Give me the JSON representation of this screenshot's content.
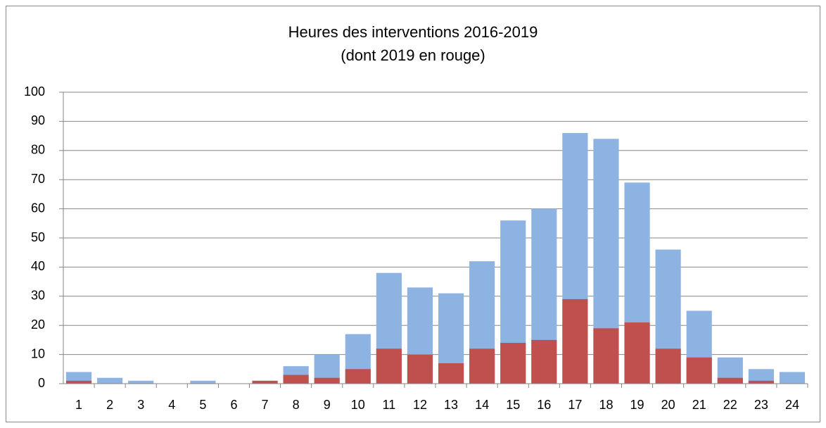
{
  "chart_data": {
    "type": "bar",
    "overlap": true,
    "title": "Heures des interventions 2016-2019",
    "subtitle": "(dont 2019 en rouge)",
    "categories": [
      "1",
      "2",
      "3",
      "4",
      "5",
      "6",
      "7",
      "8",
      "9",
      "10",
      "11",
      "12",
      "13",
      "14",
      "15",
      "16",
      "17",
      "18",
      "19",
      "20",
      "21",
      "22",
      "23",
      "24"
    ],
    "series": [
      {
        "color": "#8db3e2",
        "values": [
          4,
          2,
          1,
          0,
          1,
          0,
          1,
          6,
          10,
          17,
          38,
          33,
          31,
          42,
          56,
          60,
          86,
          84,
          69,
          46,
          25,
          9,
          5,
          4
        ]
      },
      {
        "color": "#c0504d",
        "values": [
          1,
          0,
          0,
          0,
          0,
          0,
          1,
          3,
          2,
          5,
          12,
          10,
          7,
          12,
          14,
          15,
          29,
          19,
          21,
          12,
          9,
          2,
          1,
          0
        ]
      }
    ],
    "ylim": [
      0,
      100
    ],
    "yticks": [
      0,
      10,
      20,
      30,
      40,
      50,
      60,
      70,
      80,
      90,
      100
    ],
    "grid": true
  }
}
